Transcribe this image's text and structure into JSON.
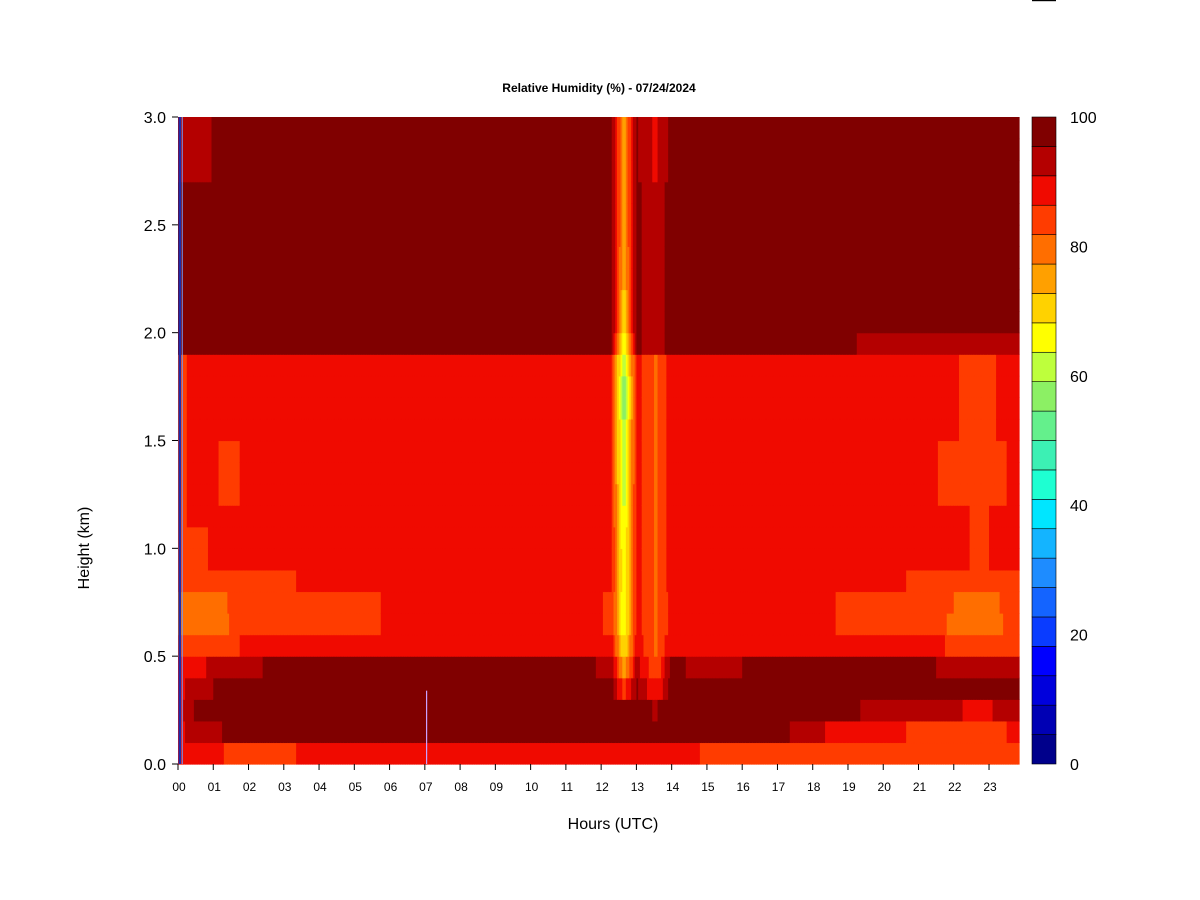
{
  "chart_data": {
    "type": "heatmap",
    "title": "Relative Humidity (%) - 07/24/2024",
    "xlabel": "Hours (UTC)",
    "ylabel": "Height (km)",
    "xlim": [
      0,
      23.85
    ],
    "ylim": [
      0.0,
      3.0
    ],
    "x_ticks": [
      "00",
      "01",
      "02",
      "03",
      "04",
      "05",
      "06",
      "07",
      "08",
      "09",
      "10",
      "11",
      "12",
      "13",
      "14",
      "15",
      "16",
      "17",
      "18",
      "19",
      "20",
      "21",
      "22",
      "23"
    ],
    "y_ticks": [
      "0.0",
      "0.5",
      "1.0",
      "1.5",
      "2.0",
      "2.5",
      "3.0"
    ],
    "colorbar": {
      "ticks": [
        "0",
        "20",
        "40",
        "60",
        "80",
        "100"
      ],
      "range": [
        0,
        100
      ],
      "levels": [
        "#00008b",
        "#0000b4",
        "#0000dc",
        "#0000ff",
        "#0a3cff",
        "#1464ff",
        "#1e8cff",
        "#14b4ff",
        "#00e6ff",
        "#1effd2",
        "#3cf0b4",
        "#64f08c",
        "#8cf064",
        "#beff3c",
        "#ffff00",
        "#ffd200",
        "#ffa000",
        "#ff6e00",
        "#ff3c00",
        "#f00a00",
        "#b40000",
        "#800000"
      ]
    },
    "height_km": [
      0.05,
      0.15,
      0.25,
      0.35,
      0.45,
      0.55,
      0.65,
      0.75,
      0.85,
      0.95,
      1.05,
      1.15,
      1.25,
      1.35,
      1.45,
      1.55,
      1.65,
      1.75,
      1.85,
      1.95,
      2.05,
      2.15,
      2.25,
      2.35,
      2.45,
      2.55,
      2.65,
      2.75,
      2.85,
      2.95
    ],
    "profiles": [
      {
        "hour": 0.1,
        "rh": [
          88,
          90,
          90,
          90,
          90,
          84,
          80,
          80,
          84,
          86,
          86,
          86,
          86,
          86,
          86,
          86,
          86,
          86,
          86,
          96,
          96,
          96,
          96,
          96,
          96,
          96,
          96,
          95,
          95,
          95
        ]
      },
      {
        "hour": 0.5,
        "rh": [
          88,
          94,
          96,
          94,
          90,
          84,
          78,
          80,
          84,
          86,
          86,
          87,
          87,
          87,
          87,
          87,
          87,
          87,
          87,
          96,
          96,
          96,
          96,
          96,
          96,
          96,
          96,
          95,
          95,
          95
        ]
      },
      {
        "hour": 1.5,
        "rh": [
          86,
          96,
          97,
          97,
          93,
          86,
          82,
          82,
          85,
          87,
          87,
          87,
          86,
          86,
          86,
          87,
          87,
          87,
          87,
          97,
          97,
          97,
          97,
          97,
          97,
          97,
          97,
          96,
          96,
          96
        ]
      },
      {
        "hour": 3,
        "rh": [
          86,
          98,
          98,
          98,
          97,
          88,
          85,
          84,
          86,
          88,
          88,
          88,
          88,
          88,
          88,
          88,
          88,
          88,
          88,
          97,
          98,
          98,
          98,
          98,
          98,
          98,
          98,
          97,
          97,
          97
        ]
      },
      {
        "hour": 5,
        "rh": [
          88,
          98,
          98,
          98,
          98,
          89,
          86,
          86,
          88,
          89,
          89,
          89,
          89,
          89,
          89,
          89,
          89,
          89,
          89,
          98,
          98,
          98,
          98,
          98,
          98,
          98,
          98,
          97,
          97,
          97
        ]
      },
      {
        "hour": 7,
        "rh": [
          88,
          98,
          98,
          98,
          98,
          90,
          87,
          87,
          89,
          89,
          89,
          89,
          89,
          89,
          89,
          89,
          89,
          89,
          89,
          98,
          98,
          98,
          98,
          98,
          98,
          98,
          98,
          97,
          97,
          97
        ]
      },
      {
        "hour": 9,
        "rh": [
          88,
          98,
          98,
          98,
          98,
          90,
          88,
          88,
          89,
          89,
          89,
          89,
          89,
          89,
          89,
          89,
          89,
          89,
          89,
          98,
          98,
          98,
          98,
          98,
          98,
          98,
          98,
          97,
          97,
          97
        ]
      },
      {
        "hour": 11,
        "rh": [
          88,
          98,
          98,
          98,
          98,
          90,
          88,
          88,
          89,
          89,
          89,
          89,
          89,
          89,
          89,
          89,
          89,
          89,
          89,
          98,
          98,
          98,
          98,
          98,
          98,
          98,
          98,
          97,
          97,
          97
        ]
      },
      {
        "hour": 12.3,
        "rh": [
          88,
          98,
          98,
          97,
          94,
          88,
          86,
          86,
          87,
          87,
          87,
          87,
          87,
          87,
          87,
          87,
          87,
          87,
          87,
          97,
          97,
          97,
          97,
          97,
          97,
          97,
          97,
          96,
          96,
          96
        ]
      },
      {
        "hour": 12.65,
        "rh": [
          88,
          98,
          96,
          84,
          74,
          68,
          63,
          63,
          64,
          64,
          63,
          62,
          60,
          58,
          58,
          58,
          56,
          56,
          58,
          62,
          70,
          70,
          72,
          72,
          74,
          75,
          75,
          75,
          75,
          75
        ]
      },
      {
        "hour": 13.0,
        "rh": [
          88,
          98,
          98,
          96,
          93,
          89,
          88,
          88,
          88,
          88,
          88,
          88,
          88,
          88,
          88,
          88,
          88,
          88,
          88,
          97,
          97,
          97,
          97,
          97,
          97,
          97,
          97,
          96,
          96,
          96
        ]
      },
      {
        "hour": 13.55,
        "rh": [
          88,
          98,
          95,
          86,
          82,
          81,
          81,
          81,
          81,
          81,
          81,
          81,
          81,
          81,
          81,
          81,
          81,
          81,
          81,
          92,
          92,
          92,
          92,
          92,
          92,
          92,
          92,
          90,
          90,
          90
        ]
      },
      {
        "hour": 14,
        "rh": [
          88,
          98,
          98,
          98,
          97,
          90,
          88,
          88,
          89,
          89,
          89,
          89,
          89,
          89,
          89,
          89,
          89,
          89,
          89,
          98,
          98,
          98,
          98,
          98,
          98,
          98,
          98,
          97,
          97,
          97
        ]
      },
      {
        "hour": 15,
        "rh": [
          86,
          98,
          98,
          96,
          93,
          88,
          87,
          87,
          88,
          88,
          88,
          88,
          88,
          88,
          88,
          88,
          88,
          88,
          88,
          97,
          97,
          97,
          97,
          97,
          97,
          97,
          97,
          96,
          96,
          96
        ]
      },
      {
        "hour": 17,
        "rh": [
          86,
          97,
          98,
          98,
          98,
          90,
          88,
          88,
          89,
          89,
          89,
          89,
          89,
          89,
          89,
          89,
          89,
          89,
          89,
          98,
          98,
          98,
          98,
          98,
          98,
          98,
          98,
          97,
          97,
          97
        ]
      },
      {
        "hour": 19,
        "rh": [
          84,
          88,
          96,
          98,
          97,
          89,
          86,
          86,
          88,
          89,
          89,
          89,
          89,
          89,
          89,
          88,
          88,
          88,
          88,
          96,
          97,
          97,
          97,
          97,
          97,
          97,
          97,
          97,
          97,
          97
        ]
      },
      {
        "hour": 21,
        "rh": [
          82,
          86,
          93,
          97,
          96,
          88,
          84,
          84,
          86,
          88,
          88,
          88,
          87,
          87,
          87,
          87,
          87,
          87,
          87,
          92,
          96,
          96,
          96,
          96,
          96,
          96,
          96,
          96,
          96,
          96
        ]
      },
      {
        "hour": 22.8,
        "rh": [
          82,
          85,
          90,
          96,
          94,
          84,
          79,
          80,
          84,
          86,
          86,
          86,
          85,
          85,
          85,
          86,
          86,
          86,
          86,
          91,
          96,
          96,
          96,
          96,
          96,
          96,
          96,
          96,
          96,
          96
        ]
      },
      {
        "hour": 23.85,
        "rh": [
          84,
          87,
          93,
          96,
          94,
          86,
          84,
          84,
          86,
          88,
          88,
          88,
          87,
          87,
          87,
          87,
          87,
          87,
          87,
          94,
          96,
          96,
          96,
          96,
          96,
          96,
          96,
          96,
          96,
          96
        ]
      }
    ],
    "grid": false,
    "legend": "right colorbar"
  }
}
